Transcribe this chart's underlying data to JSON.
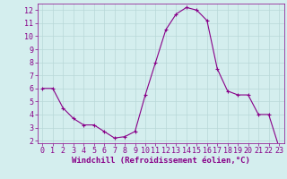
{
  "x": [
    0,
    1,
    2,
    3,
    4,
    5,
    6,
    7,
    8,
    9,
    10,
    11,
    12,
    13,
    14,
    15,
    16,
    17,
    18,
    19,
    20,
    21,
    22,
    23
  ],
  "y": [
    6.0,
    6.0,
    4.5,
    3.7,
    3.2,
    3.2,
    2.7,
    2.2,
    2.3,
    2.7,
    5.5,
    8.0,
    10.5,
    11.7,
    12.2,
    12.0,
    11.2,
    7.5,
    5.8,
    5.5,
    5.5,
    4.0,
    4.0,
    1.5
  ],
  "line_color": "#880088",
  "marker": "+",
  "marker_size": 3,
  "bg_color": "#d4eeee",
  "grid_color": "#b8d8d8",
  "xlabel": "Windchill (Refroidissement éolien,°C)",
  "xlabel_color": "#880088",
  "xlabel_fontsize": 6.5,
  "tick_color": "#880088",
  "tick_fontsize": 6,
  "ylim": [
    1.8,
    12.5
  ],
  "xlim": [
    -0.5,
    23.5
  ],
  "yticks": [
    2,
    3,
    4,
    5,
    6,
    7,
    8,
    9,
    10,
    11,
    12
  ],
  "xticks": [
    0,
    1,
    2,
    3,
    4,
    5,
    6,
    7,
    8,
    9,
    10,
    11,
    12,
    13,
    14,
    15,
    16,
    17,
    18,
    19,
    20,
    21,
    22,
    23
  ]
}
